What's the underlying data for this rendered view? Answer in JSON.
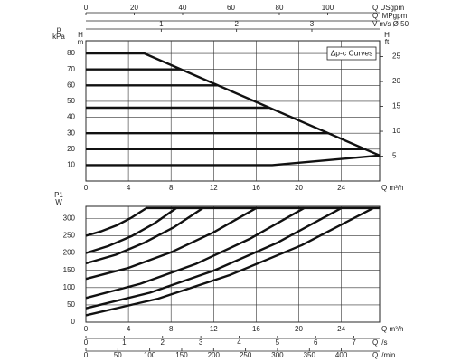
{
  "chart_data": [
    {
      "type": "line",
      "annotation": "Δp-c Curves",
      "ylabel_symbol": "p",
      "ylabel": "kPa",
      "inner_ylabel_symbol": "H",
      "inner_ylabel": "m",
      "y2label_symbol": "H",
      "y2label": "ft",
      "xlabel": "Q m³/h",
      "xlim": [
        0,
        27.6
      ],
      "xticks": [
        0,
        4,
        8,
        12,
        16,
        20,
        24
      ],
      "ylim": [
        0,
        88
      ],
      "yticks": [
        10,
        20,
        30,
        40,
        50,
        60,
        70,
        80
      ],
      "y2lim": [
        0,
        28.2
      ],
      "y2ticks": [
        5,
        10,
        15,
        20,
        25
      ],
      "grid": true,
      "color": "#111111",
      "top_axes": [
        {
          "label": "Q USgpm",
          "xlim": [
            0,
            121.5
          ],
          "xticks": [
            0,
            20,
            40,
            60,
            80,
            100
          ]
        },
        {
          "label": "Q IMPgpm",
          "xlim": [
            0,
            101.2
          ]
        },
        {
          "label": "V m/s Ø 50",
          "xlim": [
            0,
            3.9
          ],
          "xticks": [
            1,
            2,
            3
          ]
        }
      ],
      "series": [
        {
          "x": [
            0,
            5.5,
            27.6
          ],
          "values": [
            80,
            80,
            16
          ]
        },
        {
          "x": [
            0,
            8.9
          ],
          "values": [
            70,
            70
          ]
        },
        {
          "x": [
            0,
            12.4
          ],
          "values": [
            60,
            60
          ]
        },
        {
          "x": [
            0,
            17.2
          ],
          "values": [
            46,
            46
          ]
        },
        {
          "x": [
            0,
            22.8
          ],
          "values": [
            30,
            30
          ]
        },
        {
          "x": [
            0,
            26.2
          ],
          "values": [
            20,
            20
          ]
        },
        {
          "x": [
            0,
            17.5,
            27.6
          ],
          "values": [
            10,
            10,
            16
          ]
        }
      ]
    },
    {
      "type": "line",
      "ylabel_symbol": "P1",
      "ylabel": "W",
      "xlabel": "Q m³/h",
      "xlim": [
        0,
        27.6
      ],
      "xticks": [
        0,
        4,
        8,
        12,
        16,
        20,
        24
      ],
      "ylim": [
        0,
        335
      ],
      "yticks": [
        0,
        50,
        100,
        150,
        200,
        250,
        300
      ],
      "grid": true,
      "color": "#111111",
      "bottom_axes": [
        {
          "label": "Q l/s",
          "xlim": [
            0,
            7.67
          ],
          "xticks": [
            0,
            1,
            2,
            3,
            4,
            5,
            6,
            7
          ]
        },
        {
          "label": "Q l/min",
          "xlim": [
            0,
            460
          ],
          "xticks": [
            0,
            50,
            100,
            150,
            200,
            250,
            300,
            350,
            400
          ]
        }
      ],
      "series": [
        {
          "x": [
            0,
            1.4,
            2.9,
            4.3,
            5.7,
            27.6
          ],
          "values": [
            250,
            262.5,
            280,
            302.5,
            330,
            330
          ]
        },
        {
          "x": [
            0,
            2.1,
            4.3,
            6.4,
            8.5
          ],
          "values": [
            200,
            220,
            249,
            285,
            330
          ]
        },
        {
          "x": [
            0,
            2.8,
            5.5,
            8.3,
            11
          ],
          "values": [
            170,
            195,
            230,
            275,
            330
          ]
        },
        {
          "x": [
            0,
            4,
            8,
            12,
            16
          ],
          "values": [
            125,
            157,
            202,
            260,
            330
          ]
        },
        {
          "x": [
            0,
            5.1,
            10.3,
            15.4,
            20.5
          ],
          "values": [
            70,
            111,
            168,
            241,
            330
          ]
        },
        {
          "x": [
            0,
            6,
            12,
            18,
            24
          ],
          "values": [
            40,
            85,
            149,
            230,
            330
          ]
        },
        {
          "x": [
            0,
            6.8,
            13.5,
            20.3,
            27
          ],
          "values": [
            20,
            68,
            136,
            223,
            330
          ]
        }
      ]
    }
  ]
}
